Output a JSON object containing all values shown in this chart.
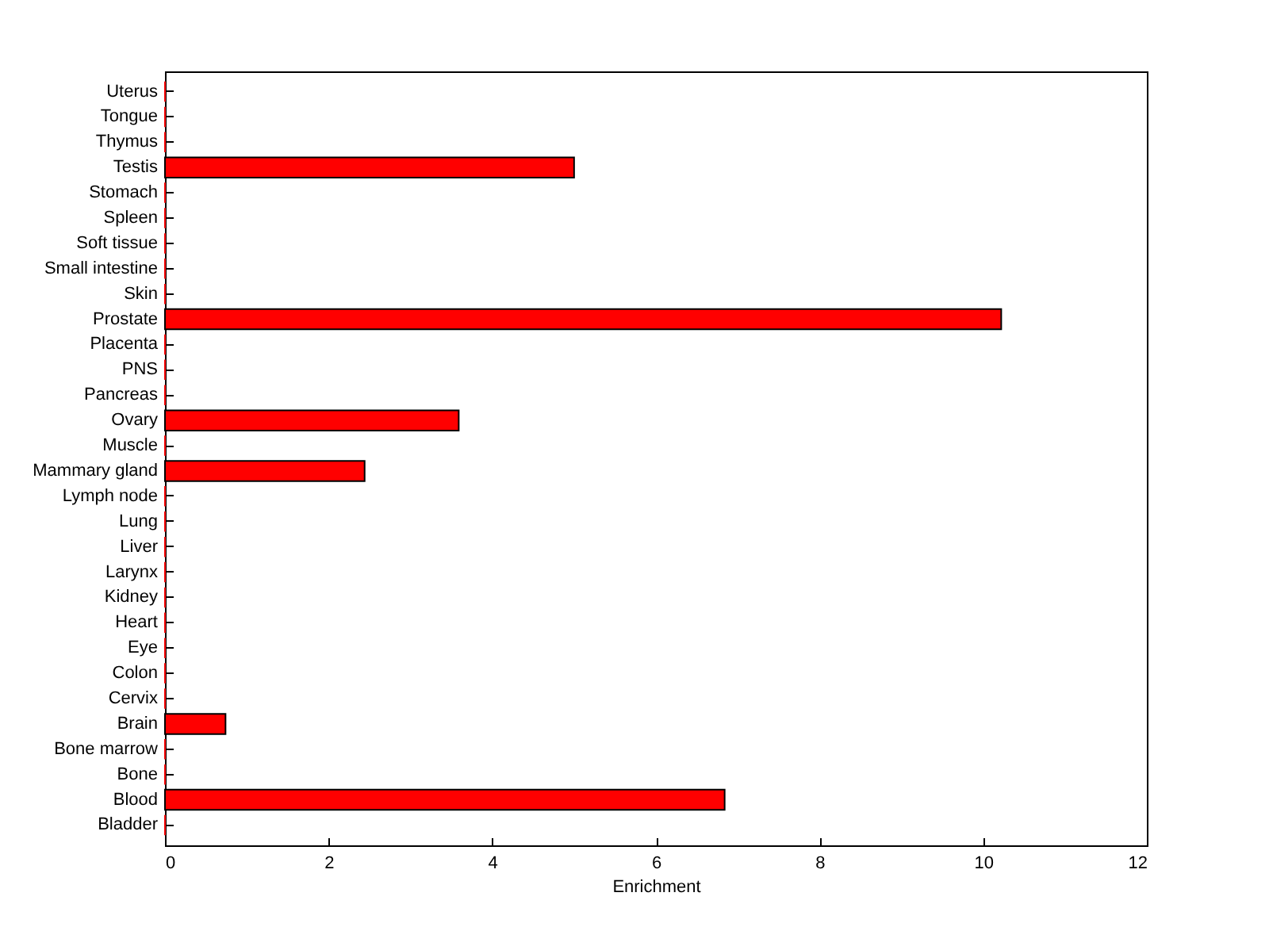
{
  "chart_data": {
    "type": "bar",
    "orientation": "horizontal",
    "xlabel": "Enrichment",
    "categories": [
      "Uterus",
      "Tongue",
      "Thymus",
      "Testis",
      "Stomach",
      "Spleen",
      "Soft tissue",
      "Small intestine",
      "Skin",
      "Prostate",
      "Placenta",
      "PNS",
      "Pancreas",
      "Ovary",
      "Muscle",
      "Mammary gland",
      "Lymph node",
      "Lung",
      "Liver",
      "Larynx",
      "Kidney",
      "Heart",
      "Eye",
      "Colon",
      "Cervix",
      "Brain",
      "Bone marrow",
      "Bone",
      "Blood",
      "Bladder"
    ],
    "values": [
      0,
      0,
      0,
      5.0,
      0,
      0,
      0,
      0,
      0,
      10.22,
      0,
      0,
      0,
      3.59,
      0,
      2.44,
      0,
      0,
      0,
      0,
      0,
      0,
      0,
      0,
      0,
      0.74,
      0,
      0,
      6.84,
      0
    ],
    "color": "#ff0000",
    "xlim": [
      0,
      12
    ],
    "xticks": [
      0,
      2,
      4,
      6,
      8,
      10,
      12
    ],
    "grid": false
  }
}
